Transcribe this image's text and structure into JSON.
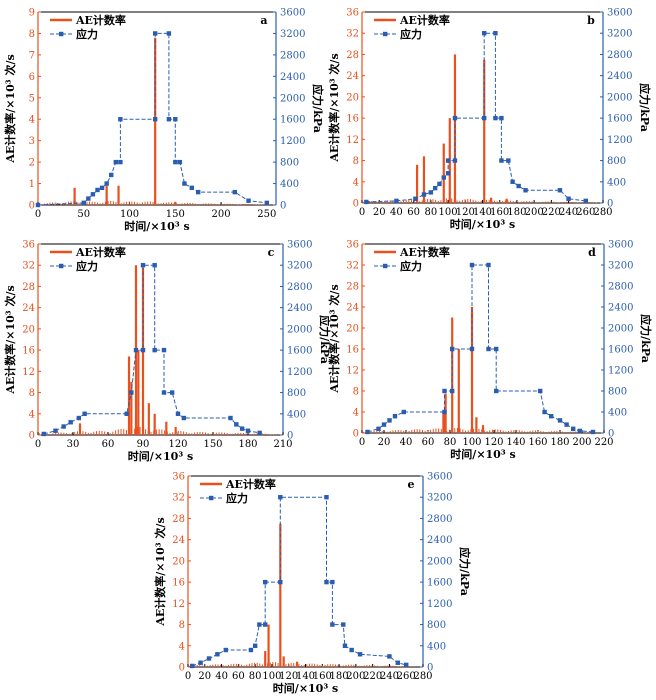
{
  "colors": {
    "ae": "#e8501e",
    "stress": "#2a5db0",
    "axis_left": "#e8501e",
    "axis_right": "#2a5db0"
  },
  "legend": {
    "ae_label": "AE计数率",
    "stress_label": "应力"
  },
  "axes": {
    "xlabel": "时间/×10³ s",
    "ylabel_left": "AE计数率/×10³ 次/s",
    "ylabel_right": "应力/kPa"
  },
  "chart_data": [
    {
      "id": "a",
      "type": "line",
      "xlim": [
        0,
        260
      ],
      "xticks": [
        0,
        50,
        100,
        150,
        200,
        250
      ],
      "ylim_left": [
        0,
        9
      ],
      "yticks_left": [
        0,
        1,
        2,
        3,
        4,
        5,
        6,
        7,
        8,
        9
      ],
      "ylim_right": [
        0,
        3600
      ],
      "yticks_right": [
        0,
        400,
        800,
        1200,
        1600,
        2000,
        2400,
        2800,
        3200,
        3600
      ],
      "ae_series": {
        "name": "AE计数率",
        "spikes": [
          [
            40,
            0.8
          ],
          [
            75,
            0.9
          ],
          [
            88,
            0.9
          ],
          [
            128,
            7.8
          ],
          [
            150,
            0.15
          ]
        ],
        "baseline": [
          [
            0,
            0.05
          ],
          [
            20,
            0.08
          ],
          [
            45,
            0.12
          ],
          [
            60,
            0.1
          ],
          [
            80,
            0.12
          ],
          [
            100,
            0.1
          ],
          [
            110,
            0.12
          ],
          [
            140,
            0.08
          ],
          [
            170,
            0.06
          ],
          [
            200,
            0.04
          ],
          [
            240,
            0.03
          ],
          [
            255,
            0.02
          ]
        ]
      },
      "stress_series": {
        "name": "应力",
        "points": [
          [
            0,
            0
          ],
          [
            50,
            40
          ],
          [
            55,
            120
          ],
          [
            60,
            200
          ],
          [
            65,
            280
          ],
          [
            70,
            320
          ],
          [
            75,
            400
          ],
          [
            80,
            560
          ],
          [
            85,
            800
          ],
          [
            90,
            800
          ],
          [
            90,
            1600
          ],
          [
            128,
            1600
          ],
          [
            128,
            3200
          ],
          [
            143,
            3200
          ],
          [
            143,
            1600
          ],
          [
            150,
            1600
          ],
          [
            150,
            800
          ],
          [
            155,
            800
          ],
          [
            160,
            400
          ],
          [
            168,
            320
          ],
          [
            175,
            240
          ],
          [
            215,
            240
          ],
          [
            230,
            80
          ],
          [
            250,
            40
          ]
        ]
      }
    },
    {
      "id": "b",
      "type": "line",
      "xlim": [
        0,
        280
      ],
      "xticks": [
        0,
        20,
        40,
        60,
        80,
        100,
        120,
        140,
        160,
        180,
        200,
        220,
        240,
        260,
        280
      ],
      "ylim_left": [
        0,
        36
      ],
      "yticks_left": [
        0,
        4,
        8,
        12,
        16,
        20,
        24,
        28,
        32,
        36
      ],
      "ylim_right": [
        0,
        3600
      ],
      "yticks_right": [
        0,
        400,
        800,
        1200,
        1600,
        2000,
        2400,
        2800,
        3200,
        3600
      ],
      "ae_series": {
        "name": "AE计数率",
        "spikes": [
          [
            64,
            7.2
          ],
          [
            72,
            8.8
          ],
          [
            95,
            11.2
          ],
          [
            102,
            16
          ],
          [
            108,
            28
          ],
          [
            142,
            27
          ],
          [
            150,
            1
          ],
          [
            168,
            0.8
          ]
        ],
        "baseline": [
          [
            0,
            0.2
          ],
          [
            30,
            0.3
          ],
          [
            60,
            0.4
          ],
          [
            80,
            0.5
          ],
          [
            100,
            0.6
          ],
          [
            120,
            0.5
          ],
          [
            140,
            0.4
          ],
          [
            170,
            0.3
          ],
          [
            200,
            0.2
          ],
          [
            240,
            0.15
          ],
          [
            275,
            0.1
          ]
        ]
      },
      "stress_series": {
        "name": "应力",
        "points": [
          [
            5,
            20
          ],
          [
            40,
            40
          ],
          [
            62,
            80
          ],
          [
            72,
            160
          ],
          [
            80,
            200
          ],
          [
            85,
            280
          ],
          [
            90,
            360
          ],
          [
            95,
            480
          ],
          [
            100,
            560
          ],
          [
            100,
            800
          ],
          [
            108,
            800
          ],
          [
            108,
            1600
          ],
          [
            142,
            1600
          ],
          [
            142,
            3200
          ],
          [
            155,
            3200
          ],
          [
            155,
            1600
          ],
          [
            162,
            1600
          ],
          [
            162,
            800
          ],
          [
            170,
            800
          ],
          [
            175,
            400
          ],
          [
            182,
            320
          ],
          [
            190,
            240
          ],
          [
            230,
            240
          ],
          [
            240,
            80
          ],
          [
            260,
            40
          ]
        ]
      }
    },
    {
      "id": "c",
      "type": "line",
      "xlim": [
        0,
        210
      ],
      "xticks": [
        0,
        30,
        60,
        90,
        120,
        150,
        180,
        210
      ],
      "ylim_left": [
        0,
        36
      ],
      "yticks_left": [
        0,
        4,
        8,
        12,
        16,
        20,
        24,
        28,
        32,
        36
      ],
      "ylim_right": [
        0,
        3600
      ],
      "yticks_right": [
        0,
        400,
        800,
        1200,
        1600,
        2000,
        2400,
        2800,
        3200,
        3600
      ],
      "ae_series": {
        "name": "AE计数率",
        "spikes": [
          [
            36,
            2.2
          ],
          [
            78,
            14.8
          ],
          [
            80,
            10
          ],
          [
            84,
            32
          ],
          [
            86,
            16
          ],
          [
            90,
            31.5
          ],
          [
            95,
            6
          ],
          [
            100,
            4
          ],
          [
            110,
            2.5
          ],
          [
            118,
            1.5
          ]
        ],
        "baseline": [
          [
            0,
            0.2
          ],
          [
            20,
            0.3
          ],
          [
            40,
            0.5
          ],
          [
            60,
            0.5
          ],
          [
            75,
            0.8
          ],
          [
            85,
            1
          ],
          [
            95,
            0.8
          ],
          [
            110,
            0.6
          ],
          [
            130,
            0.4
          ],
          [
            160,
            0.3
          ],
          [
            190,
            0.2
          ],
          [
            205,
            0.1
          ]
        ]
      },
      "stress_series": {
        "name": "应力",
        "points": [
          [
            5,
            20
          ],
          [
            15,
            80
          ],
          [
            22,
            160
          ],
          [
            28,
            240
          ],
          [
            35,
            320
          ],
          [
            40,
            400
          ],
          [
            76,
            400
          ],
          [
            80,
            800
          ],
          [
            84,
            1600
          ],
          [
            90,
            1600
          ],
          [
            90,
            3200
          ],
          [
            100,
            3200
          ],
          [
            100,
            1600
          ],
          [
            108,
            1600
          ],
          [
            108,
            800
          ],
          [
            115,
            800
          ],
          [
            120,
            400
          ],
          [
            125,
            320
          ],
          [
            165,
            320
          ],
          [
            170,
            200
          ],
          [
            175,
            120
          ],
          [
            180,
            80
          ],
          [
            190,
            40
          ]
        ]
      }
    },
    {
      "id": "d",
      "type": "line",
      "xlim": [
        0,
        220
      ],
      "xticks": [
        0,
        20,
        40,
        60,
        80,
        100,
        120,
        140,
        160,
        180,
        200,
        220
      ],
      "ylim_left": [
        0,
        36
      ],
      "yticks_left": [
        0,
        4,
        8,
        12,
        16,
        20,
        24,
        28,
        32,
        36
      ],
      "ylim_right": [
        0,
        3600
      ],
      "yticks_right": [
        0,
        400,
        800,
        1200,
        1600,
        2000,
        2400,
        2800,
        3200,
        3600
      ],
      "ae_series": {
        "name": "AE计数率",
        "spikes": [
          [
            74,
            4
          ],
          [
            76,
            7.5
          ],
          [
            82,
            22
          ],
          [
            88,
            16
          ],
          [
            100,
            24
          ],
          [
            104,
            3
          ],
          [
            110,
            1.5
          ]
        ],
        "baseline": [
          [
            0,
            0.2
          ],
          [
            20,
            0.3
          ],
          [
            40,
            0.4
          ],
          [
            60,
            0.5
          ],
          [
            75,
            0.6
          ],
          [
            90,
            0.6
          ],
          [
            110,
            0.5
          ],
          [
            130,
            0.4
          ],
          [
            160,
            0.3
          ],
          [
            190,
            0.2
          ],
          [
            215,
            0.1
          ]
        ]
      },
      "stress_series": {
        "name": "应力",
        "points": [
          [
            5,
            20
          ],
          [
            15,
            80
          ],
          [
            20,
            160
          ],
          [
            25,
            240
          ],
          [
            30,
            320
          ],
          [
            38,
            400
          ],
          [
            75,
            400
          ],
          [
            75,
            800
          ],
          [
            82,
            800
          ],
          [
            82,
            1600
          ],
          [
            100,
            1600
          ],
          [
            100,
            3200
          ],
          [
            115,
            3200
          ],
          [
            115,
            1600
          ],
          [
            122,
            1600
          ],
          [
            122,
            800
          ],
          [
            162,
            800
          ],
          [
            166,
            400
          ],
          [
            172,
            320
          ],
          [
            180,
            240
          ],
          [
            186,
            160
          ],
          [
            192,
            80
          ],
          [
            198,
            40
          ],
          [
            210,
            20
          ]
        ]
      }
    },
    {
      "id": "e",
      "type": "line",
      "xlim": [
        0,
        280
      ],
      "xticks": [
        0,
        20,
        40,
        60,
        80,
        100,
        120,
        140,
        160,
        180,
        200,
        220,
        240,
        260,
        280
      ],
      "ylim_left": [
        0,
        36
      ],
      "yticks_left": [
        0,
        4,
        8,
        12,
        16,
        20,
        24,
        28,
        32,
        36
      ],
      "ylim_right": [
        0,
        3600
      ],
      "yticks_right": [
        0,
        400,
        800,
        1200,
        1600,
        2000,
        2400,
        2800,
        3200,
        3600
      ],
      "ae_series": {
        "name": "AE计数率",
        "spikes": [
          [
            92,
            3
          ],
          [
            96,
            8
          ],
          [
            110,
            27
          ],
          [
            114,
            2
          ],
          [
            130,
            1
          ]
        ],
        "baseline": [
          [
            0,
            0.2
          ],
          [
            30,
            0.3
          ],
          [
            60,
            0.4
          ],
          [
            80,
            0.5
          ],
          [
            100,
            0.6
          ],
          [
            120,
            0.5
          ],
          [
            150,
            0.4
          ],
          [
            190,
            0.3
          ],
          [
            230,
            0.2
          ],
          [
            270,
            0.1
          ]
        ]
      },
      "stress_series": {
        "name": "应力",
        "points": [
          [
            5,
            20
          ],
          [
            15,
            80
          ],
          [
            25,
            160
          ],
          [
            35,
            240
          ],
          [
            45,
            320
          ],
          [
            75,
            320
          ],
          [
            80,
            400
          ],
          [
            85,
            800
          ],
          [
            92,
            800
          ],
          [
            92,
            1600
          ],
          [
            110,
            1600
          ],
          [
            110,
            3200
          ],
          [
            165,
            3200
          ],
          [
            165,
            1600
          ],
          [
            172,
            1600
          ],
          [
            172,
            800
          ],
          [
            185,
            800
          ],
          [
            187,
            400
          ],
          [
            195,
            320
          ],
          [
            205,
            240
          ],
          [
            240,
            200
          ],
          [
            250,
            80
          ],
          [
            260,
            40
          ]
        ]
      }
    }
  ]
}
